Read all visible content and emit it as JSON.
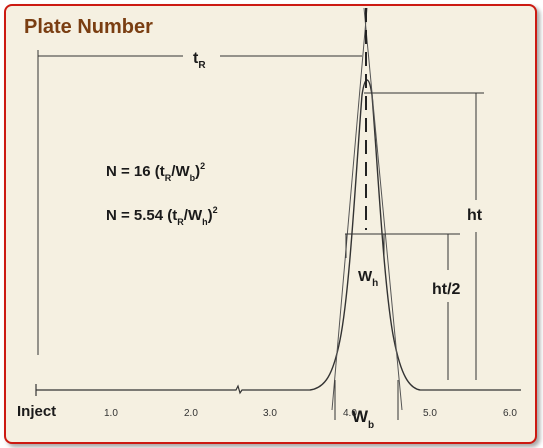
{
  "title": "Plate Number",
  "colors": {
    "frame_border": "#cc1a12",
    "background": "#f5f0e1",
    "title": "#7a3e12",
    "line": "#333333"
  },
  "labels": {
    "tR": "t",
    "tR_sub": "R",
    "ht": "ht",
    "ht_half": "ht/2",
    "wh": "W",
    "wh_sub": "h",
    "wb": "W",
    "wb_sub": "b",
    "inject": "Inject"
  },
  "formula1": {
    "lead": "N = 16 (t",
    "sub1": "R",
    "mid": "/W",
    "sub2": "b",
    "tail": ")",
    "exp": "2"
  },
  "formula2": {
    "lead": "N = 5.54 (t",
    "sub1": "R",
    "mid": "/W",
    "sub2": "h",
    "tail": ")",
    "exp": "2"
  },
  "axis_ticks": [
    "1.0",
    "2.0",
    "3.0",
    "4.0",
    "5.0",
    "6.0"
  ]
}
